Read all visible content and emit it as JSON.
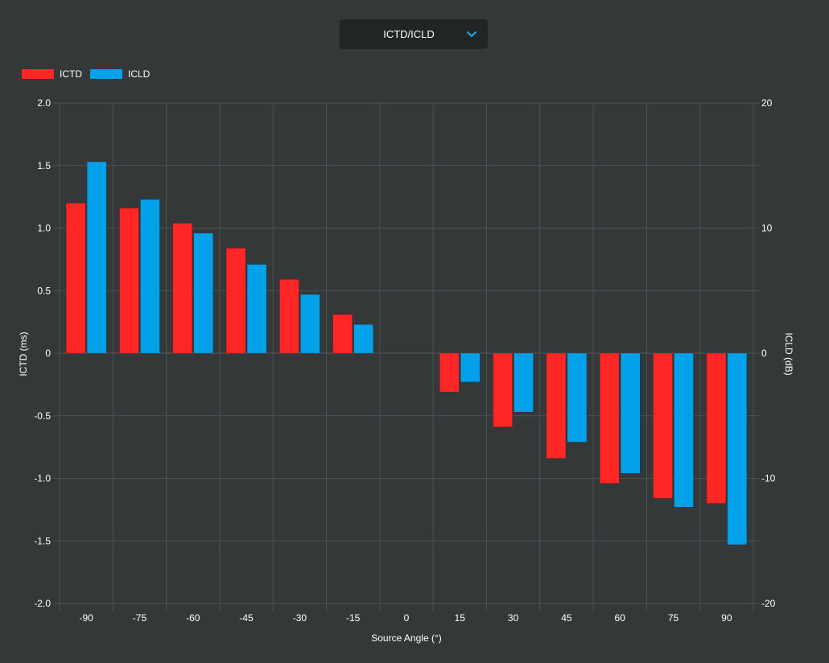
{
  "selector": {
    "label": "ICTD/ICLD",
    "icon": "chevron-down-icon",
    "icon_color": "#1ea3e8"
  },
  "chart_data": {
    "type": "bar",
    "title": "",
    "xlabel": "Source Angle (°)",
    "ylabel_left": "ICTD (ms)",
    "ylabel_right": "ICLD (dB)",
    "categories": [
      "-90",
      "-75",
      "-60",
      "-45",
      "-30",
      "-15",
      "0",
      "15",
      "30",
      "45",
      "60",
      "75",
      "90"
    ],
    "ylim_left": [
      -2.0,
      2.0
    ],
    "yticks_left": [
      "2.0",
      "1.5",
      "1.0",
      "0.5",
      "0",
      "-0.5",
      "-1.0",
      "-1.5",
      "-2.0"
    ],
    "ylim_right": [
      -20,
      20
    ],
    "yticks_right": [
      "20",
      "10",
      "0",
      "-10",
      "-20"
    ],
    "grid": true,
    "legend_position": "top-left",
    "series": [
      {
        "name": "ICTD",
        "axis": "left",
        "color": "#ff2626",
        "values": [
          1.2,
          1.16,
          1.04,
          0.84,
          0.59,
          0.31,
          0,
          -0.31,
          -0.59,
          -0.84,
          -1.04,
          -1.16,
          -1.2
        ]
      },
      {
        "name": "ICLD",
        "axis": "right",
        "color": "#03a1ea",
        "values": [
          15.3,
          12.3,
          9.6,
          7.1,
          4.7,
          2.3,
          0,
          -2.3,
          -4.7,
          -7.1,
          -9.6,
          -12.3,
          -15.3
        ]
      }
    ]
  }
}
